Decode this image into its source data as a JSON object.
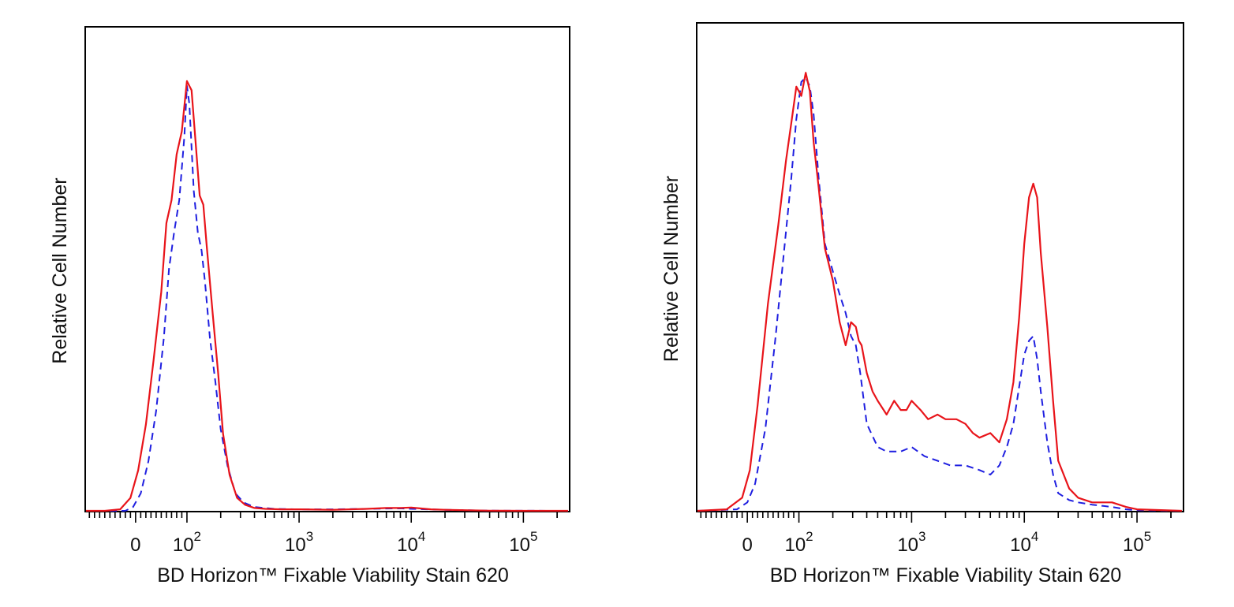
{
  "chart_data": [
    {
      "type": "line",
      "title": "",
      "xlabel": "BD Horizon™ Fixable Viability Stain 620",
      "ylabel": "Relative Cell Number",
      "x_scale": "biexponential",
      "xlim": [
        -100,
        250000
      ],
      "ylim": [
        0,
        100
      ],
      "grid": false,
      "legend": "none",
      "x_tick_labels": [
        {
          "value": 0,
          "base": "0",
          "exp": ""
        },
        {
          "value": 100,
          "base": "10",
          "exp": "2"
        },
        {
          "value": 1000,
          "base": "10",
          "exp": "3"
        },
        {
          "value": 10000,
          "base": "10",
          "exp": "4"
        },
        {
          "value": 100000,
          "base": "10",
          "exp": "5"
        }
      ],
      "series": [
        {
          "style": "solid",
          "color": "#e8141a",
          "x": [
            -100,
            -60,
            -30,
            -10,
            5,
            20,
            35,
            50,
            60,
            70,
            80,
            90,
            100,
            110,
            120,
            130,
            140,
            150,
            170,
            190,
            210,
            240,
            280,
            330,
            400,
            500,
            700,
            1000,
            2000,
            4000,
            6000,
            8000,
            10000,
            12000,
            15000,
            20000,
            50000,
            100000,
            250000
          ],
          "y": [
            0,
            0,
            0.5,
            3,
            9,
            19,
            33,
            48,
            63,
            68,
            78,
            83,
            94,
            92,
            80,
            69,
            67,
            58,
            43,
            30,
            17,
            8,
            3,
            1.5,
            0.8,
            0.6,
            0.5,
            0.5,
            0.4,
            0.6,
            0.8,
            0.8,
            0.9,
            0.7,
            0.5,
            0.4,
            0.2,
            0.1,
            0
          ]
        },
        {
          "style": "dashed",
          "color": "#1f1fe0",
          "x": [
            -100,
            -20,
            -5,
            10,
            25,
            40,
            55,
            65,
            75,
            85,
            95,
            100,
            105,
            115,
            125,
            135,
            145,
            160,
            180,
            200,
            230,
            270,
            320,
            400,
            600,
            1000,
            2000,
            4000,
            8000,
            10000,
            20000,
            50000,
            250000
          ],
          "y": [
            0,
            0,
            1,
            4,
            11,
            22,
            38,
            53,
            61,
            68,
            82,
            93,
            89,
            70,
            61,
            57,
            50,
            38,
            28,
            18,
            10,
            4,
            2,
            1,
            0.6,
            0.5,
            0.5,
            0.6,
            0.7,
            0.6,
            0.4,
            0.2,
            0
          ]
        }
      ]
    },
    {
      "type": "line",
      "title": "",
      "xlabel": "BD Horizon™ Fixable Viability Stain 620",
      "ylabel": "Relative Cell Number",
      "x_scale": "biexponential",
      "xlim": [
        -100,
        250000
      ],
      "ylim": [
        0,
        100
      ],
      "grid": false,
      "legend": "none",
      "x_tick_labels": [
        {
          "value": 0,
          "base": "0",
          "exp": ""
        },
        {
          "value": 100,
          "base": "10",
          "exp": "2"
        },
        {
          "value": 1000,
          "base": "10",
          "exp": "3"
        },
        {
          "value": 10000,
          "base": "10",
          "exp": "4"
        },
        {
          "value": 100000,
          "base": "10",
          "exp": "5"
        }
      ],
      "series": [
        {
          "style": "solid",
          "color": "#e8141a",
          "x": [
            -100,
            -40,
            -10,
            5,
            20,
            40,
            60,
            75,
            85,
            95,
            105,
            115,
            125,
            135,
            150,
            170,
            200,
            230,
            260,
            290,
            320,
            340,
            360,
            400,
            450,
            500,
            600,
            700,
            800,
            900,
            1000,
            1200,
            1400,
            1700,
            2000,
            2500,
            3000,
            3500,
            4000,
            5000,
            6000,
            7000,
            8000,
            9000,
            10000,
            11000,
            12000,
            13000,
            14000,
            16000,
            18000,
            20000,
            25000,
            30000,
            40000,
            60000,
            80000,
            100000,
            250000
          ],
          "y": [
            0,
            0.5,
            3,
            9,
            23,
            45,
            62,
            76,
            84,
            92,
            90,
            95,
            91,
            80,
            70,
            57,
            50,
            41,
            36,
            41,
            40,
            37,
            36,
            30,
            26,
            24,
            21,
            24,
            22,
            22,
            24,
            22,
            20,
            21,
            20,
            20,
            19,
            17,
            16,
            17,
            15,
            20,
            28,
            42,
            58,
            68,
            71,
            68,
            56,
            40,
            24,
            11,
            5,
            3,
            2,
            2,
            1,
            0.5,
            0
          ]
        },
        {
          "style": "dashed",
          "color": "#1f1fe0",
          "x": [
            -100,
            -20,
            0,
            15,
            35,
            55,
            70,
            85,
            95,
            105,
            115,
            125,
            135,
            150,
            170,
            200,
            230,
            260,
            290,
            320,
            350,
            400,
            500,
            600,
            800,
            1000,
            1300,
            1700,
            2200,
            3000,
            4000,
            5000,
            6000,
            7000,
            8000,
            9000,
            10000,
            11000,
            12000,
            13000,
            14000,
            16000,
            18000,
            20000,
            25000,
            30000,
            40000,
            60000,
            80000,
            100000,
            250000
          ],
          "y": [
            0,
            0.5,
            2,
            6,
            18,
            38,
            55,
            72,
            85,
            93,
            94,
            92,
            86,
            72,
            58,
            52,
            47,
            43,
            38,
            36,
            30,
            19,
            14,
            13,
            13,
            14,
            12,
            11,
            10,
            10,
            9,
            8,
            10,
            14,
            19,
            27,
            34,
            37,
            38,
            33,
            26,
            15,
            8,
            4,
            2.5,
            2,
            1.5,
            1,
            0.5,
            0.3,
            0
          ]
        }
      ]
    }
  ]
}
